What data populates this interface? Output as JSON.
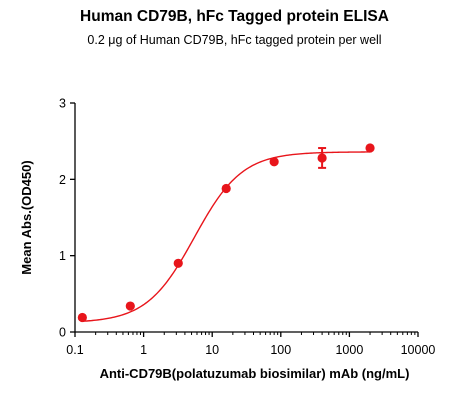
{
  "chart_data": {
    "type": "scatter",
    "title": "Human CD79B, hFc Tagged protein ELISA",
    "subtitle": "0.2 μg of Human CD79B, hFc tagged protein per well",
    "xlabel": "Anti-CD79B(polatuzumab biosimilar) mAb  (ng/mL)",
    "ylabel": "Mean Abs.(OD450)",
    "x_scale": "log",
    "xlim": [
      0.1,
      10000
    ],
    "ylim": [
      0,
      3
    ],
    "x_ticks": [
      "0.1",
      "1",
      "10",
      "100",
      "1000",
      "10000"
    ],
    "y_ticks": [
      "0",
      "1",
      "2",
      "3"
    ],
    "grid": false,
    "series_color": "#e8151b",
    "points": [
      {
        "x": 0.128,
        "y": 0.19,
        "err": 0.02
      },
      {
        "x": 0.64,
        "y": 0.34,
        "err": 0.02
      },
      {
        "x": 3.2,
        "y": 0.9,
        "err": 0.02
      },
      {
        "x": 16,
        "y": 1.88,
        "err": 0.02
      },
      {
        "x": 80,
        "y": 2.23,
        "err": 0.02
      },
      {
        "x": 400,
        "y": 2.28,
        "err": 0.13
      },
      {
        "x": 2000,
        "y": 2.41,
        "err": 0.02
      }
    ],
    "fit": {
      "model": "4PL",
      "bottom": 0.12,
      "top": 2.36,
      "ec50": 5.5,
      "hill": 1.25
    }
  }
}
